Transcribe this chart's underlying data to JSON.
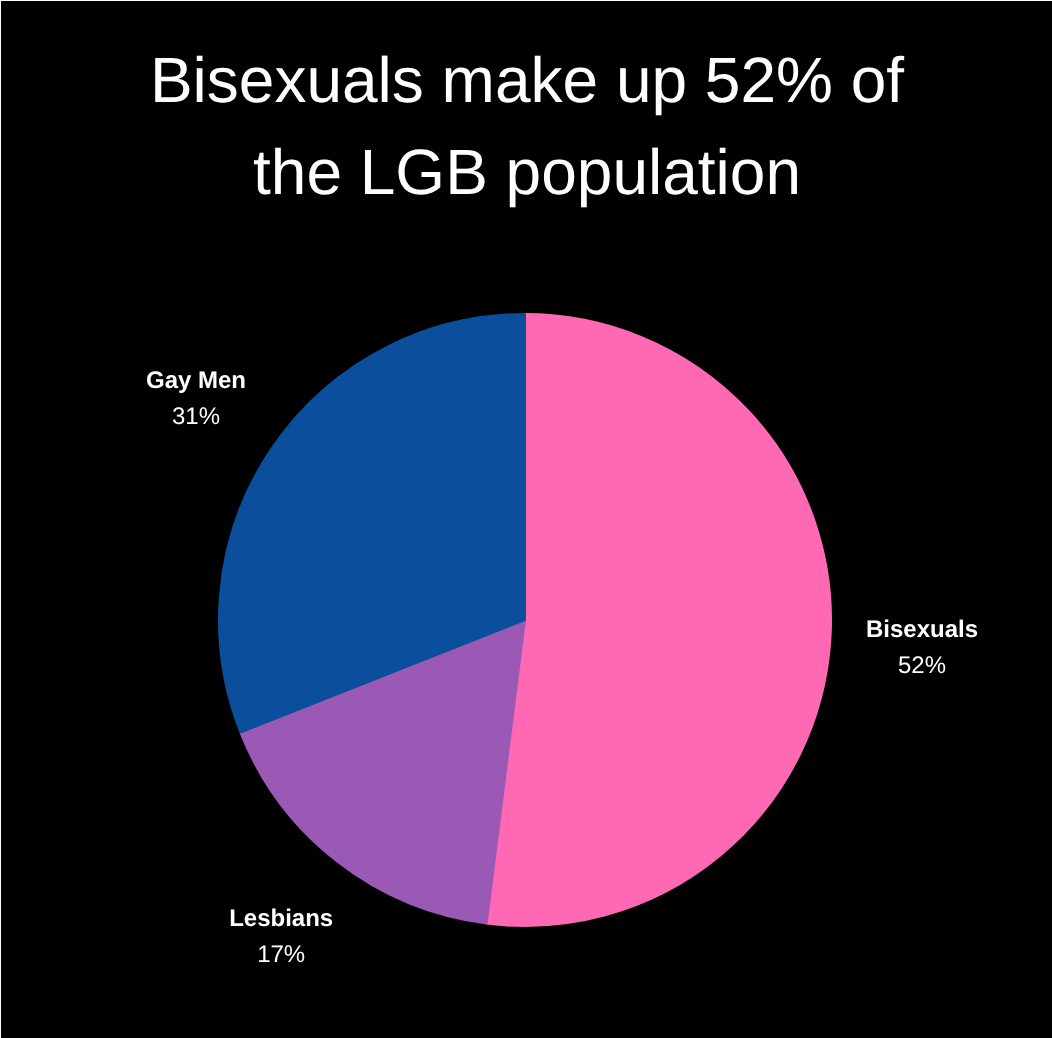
{
  "chart_data": {
    "type": "pie",
    "title": "Bisexuals make up 52% of the LGB population",
    "categories": [
      "Bisexuals",
      "Lesbians",
      "Gay Men"
    ],
    "values": [
      52,
      17,
      31
    ],
    "value_labels": [
      "52%",
      "17%",
      "31%"
    ],
    "colors": [
      "#ff69b4",
      "#9b59b6",
      "#0b4f9c"
    ]
  }
}
